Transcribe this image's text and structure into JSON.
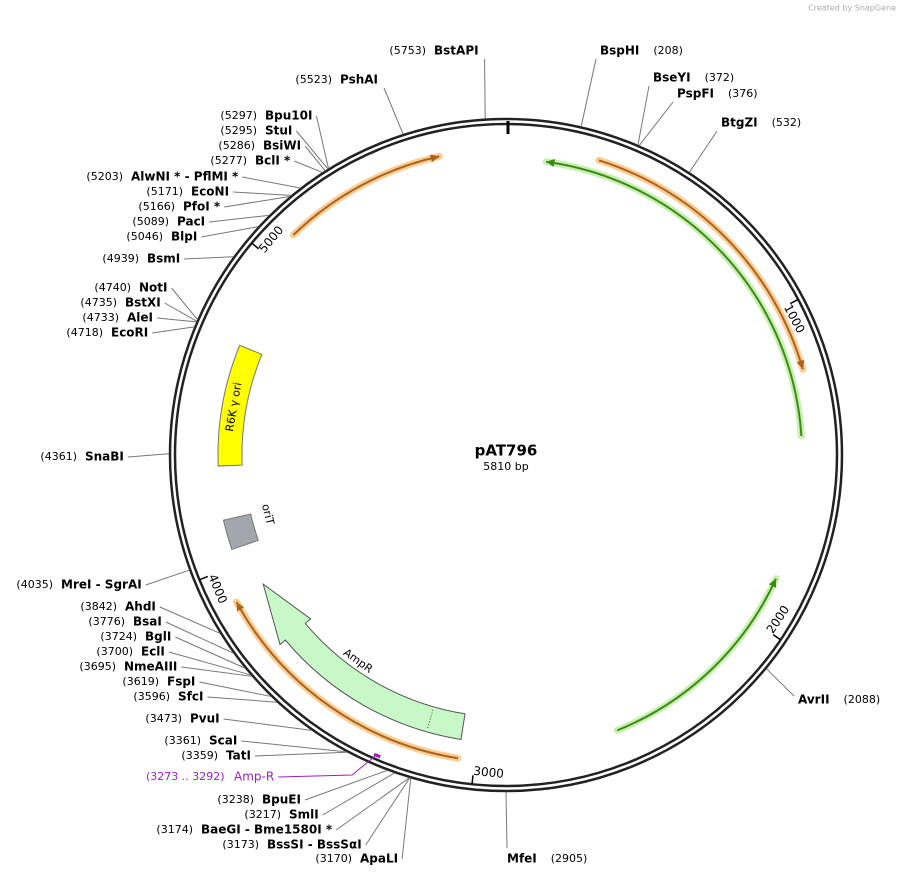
{
  "watermark": "Created by SnapGene",
  "plasmid": {
    "name": "pAT796",
    "size_label": "5810 bp",
    "length": 5810
  },
  "ring_ticks": [
    1000,
    2000,
    3000,
    4000,
    5000
  ],
  "sites": [
    {
      "name": "BstAPI",
      "position": 5753,
      "label": "(5753)"
    },
    {
      "name": "BspHI",
      "position": 208,
      "label": "(208)"
    },
    {
      "name": "BseYI",
      "position": 372,
      "label": "(372)"
    },
    {
      "name": "PspFI",
      "position": 376,
      "label": "(376)"
    },
    {
      "name": "BtgZI",
      "position": 532,
      "label": "(532)"
    },
    {
      "name": "PshAI",
      "position": 5523,
      "label": "(5523)"
    },
    {
      "name": "Bpu10I",
      "position": 5297,
      "label": "(5297)"
    },
    {
      "name": "StuI",
      "position": 5295,
      "label": "(5295)"
    },
    {
      "name": "BsiWI",
      "position": 5286,
      "label": "(5286)"
    },
    {
      "name": "BclI *",
      "position": 5277,
      "label": "(5277)"
    },
    {
      "name": "AlwNI *  -  PflMI *",
      "position": 5203,
      "label": "(5203)"
    },
    {
      "name": "EcoNI",
      "position": 5171,
      "label": "(5171)"
    },
    {
      "name": "PfoI *",
      "position": 5166,
      "label": "(5166)"
    },
    {
      "name": "PacI",
      "position": 5089,
      "label": "(5089)"
    },
    {
      "name": "BlpI",
      "position": 5046,
      "label": "(5046)"
    },
    {
      "name": "BsmI",
      "position": 4939,
      "label": "(4939)"
    },
    {
      "name": "NotI",
      "position": 4740,
      "label": "(4740)"
    },
    {
      "name": "BstXI",
      "position": 4735,
      "label": "(4735)"
    },
    {
      "name": "AleI",
      "position": 4733,
      "label": "(4733)"
    },
    {
      "name": "EcoRI",
      "position": 4718,
      "label": "(4718)"
    },
    {
      "name": "SnaBI",
      "position": 4361,
      "label": "(4361)"
    },
    {
      "name": "MreI  -  SgrAI",
      "position": 4035,
      "label": "(4035)"
    },
    {
      "name": "AhdI",
      "position": 3842,
      "label": "(3842)"
    },
    {
      "name": "BsaI",
      "position": 3776,
      "label": "(3776)"
    },
    {
      "name": "BglI",
      "position": 3724,
      "label": "(3724)"
    },
    {
      "name": "EclI",
      "position": 3700,
      "label": "(3700)"
    },
    {
      "name": "NmeAIII",
      "position": 3695,
      "label": "(3695)"
    },
    {
      "name": "FspI",
      "position": 3619,
      "label": "(3619)"
    },
    {
      "name": "SfcI",
      "position": 3596,
      "label": "(3596)"
    },
    {
      "name": "PvuI",
      "position": 3473,
      "label": "(3473)"
    },
    {
      "name": "ScaI",
      "position": 3361,
      "label": "(3361)"
    },
    {
      "name": "TatI",
      "position": 3359,
      "label": "(3359)"
    },
    {
      "name": "BpuEI",
      "position": 3238,
      "label": "(3238)"
    },
    {
      "name": "SmlI",
      "position": 3217,
      "label": "(3217)"
    },
    {
      "name": "BaeGI  -  Bme1580I *",
      "position": 3174,
      "label": "(3174)"
    },
    {
      "name": "BssSI  -  BssSαI",
      "position": 3173,
      "label": "(3173)"
    },
    {
      "name": "ApaLI",
      "position": 3170,
      "label": "(3170)"
    },
    {
      "name": "MfeI",
      "position": 2905,
      "label": "(2905)"
    },
    {
      "name": "AvrII",
      "position": 2088,
      "label": "(2088)"
    }
  ],
  "features": [
    {
      "label": "R6K γ ori"
    },
    {
      "label": "oriT"
    },
    {
      "label": "AmpR"
    }
  ],
  "primers": [
    {
      "range": "(3273 .. 3292)",
      "name": "Amp-R"
    }
  ]
}
